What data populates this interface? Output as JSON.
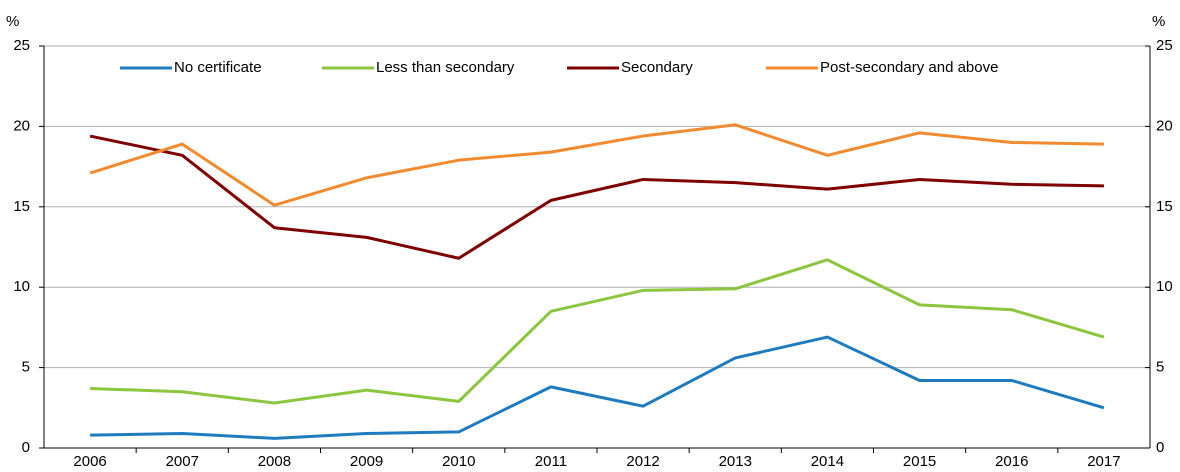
{
  "chart_data": {
    "type": "line",
    "y_label": "%",
    "y2_label": "%",
    "categories": [
      "2006",
      "2007",
      "2008",
      "2009",
      "2010",
      "2011",
      "2012",
      "2013",
      "2014",
      "2015",
      "2016",
      "2017"
    ],
    "series": [
      {
        "name": "No certificate",
        "color": "#1f7bbf",
        "values": [
          0.8,
          0.9,
          0.6,
          0.9,
          1.0,
          3.8,
          2.6,
          5.6,
          6.9,
          4.2,
          4.2,
          2.5
        ]
      },
      {
        "name": "Less than secondary",
        "color": "#8cc63f",
        "values": [
          3.7,
          3.5,
          2.8,
          3.6,
          2.9,
          8.5,
          9.8,
          9.9,
          11.7,
          8.9,
          8.6,
          6.9
        ]
      },
      {
        "name": "Secondary",
        "color": "#7f0000",
        "values": [
          19.4,
          18.2,
          13.7,
          13.1,
          11.8,
          15.4,
          16.7,
          16.5,
          16.1,
          16.7,
          16.4,
          16.3
        ]
      },
      {
        "name": "Post-secondary and above",
        "color": "#f28a30",
        "values": [
          17.1,
          18.9,
          15.1,
          16.8,
          17.9,
          18.4,
          19.4,
          20.1,
          18.2,
          19.6,
          19.0,
          18.9
        ]
      }
    ],
    "ylim": [
      0,
      25
    ],
    "yticks": [
      0,
      5,
      10,
      15,
      20,
      25
    ],
    "y2lim": [
      0,
      25
    ],
    "y2ticks": [
      0,
      5,
      10,
      15,
      20,
      25
    ],
    "grid": true
  }
}
